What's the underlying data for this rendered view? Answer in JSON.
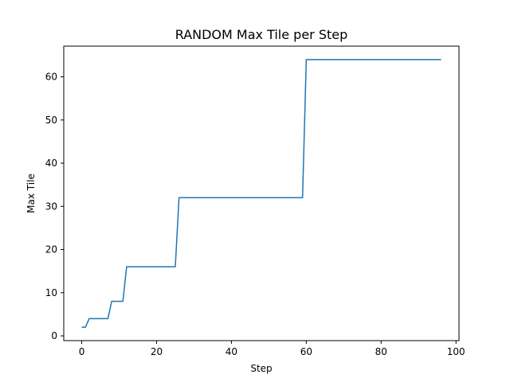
{
  "chart_data": {
    "type": "line",
    "title": "RANDOM Max Tile per Step",
    "xlabel": "Step",
    "ylabel": "Max Tile",
    "xlim": [
      -4.8,
      100.8
    ],
    "ylim": [
      -1.1,
      67.1
    ],
    "x_ticks": [
      0,
      20,
      40,
      60,
      80,
      100
    ],
    "y_ticks": [
      0,
      10,
      20,
      30,
      40,
      50,
      60
    ],
    "grid": false,
    "series": [
      {
        "color": "#1f77b4",
        "x": [
          0,
          1,
          2,
          3,
          4,
          5,
          6,
          7,
          8,
          9,
          10,
          11,
          12,
          13,
          14,
          15,
          16,
          17,
          18,
          19,
          20,
          21,
          22,
          23,
          24,
          25,
          26,
          27,
          28,
          29,
          30,
          31,
          32,
          33,
          34,
          35,
          36,
          37,
          38,
          39,
          40,
          41,
          42,
          43,
          44,
          45,
          46,
          47,
          48,
          49,
          50,
          51,
          52,
          53,
          54,
          55,
          56,
          57,
          58,
          59,
          60,
          61,
          62,
          63,
          64,
          65,
          66,
          67,
          68,
          69,
          70,
          71,
          72,
          73,
          74,
          75,
          76,
          77,
          78,
          79,
          80,
          81,
          82,
          83,
          84,
          85,
          86,
          87,
          88,
          89,
          90,
          91,
          92,
          93,
          94,
          95,
          96
        ],
        "y": [
          2,
          2,
          4,
          4,
          4,
          4,
          4,
          4,
          8,
          8,
          8,
          8,
          16,
          16,
          16,
          16,
          16,
          16,
          16,
          16,
          16,
          16,
          16,
          16,
          16,
          16,
          32,
          32,
          32,
          32,
          32,
          32,
          32,
          32,
          32,
          32,
          32,
          32,
          32,
          32,
          32,
          32,
          32,
          32,
          32,
          32,
          32,
          32,
          32,
          32,
          32,
          32,
          32,
          32,
          32,
          32,
          32,
          32,
          32,
          32,
          64,
          64,
          64,
          64,
          64,
          64,
          64,
          64,
          64,
          64,
          64,
          64,
          64,
          64,
          64,
          64,
          64,
          64,
          64,
          64,
          64,
          64,
          64,
          64,
          64,
          64,
          64,
          64,
          64,
          64,
          64,
          64,
          64,
          64,
          64,
          64,
          64
        ]
      }
    ]
  }
}
